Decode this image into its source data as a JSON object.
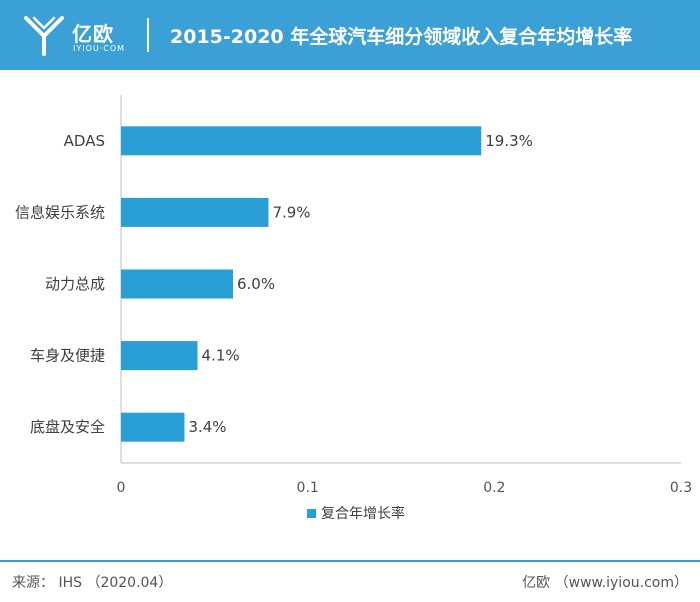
{
  "header": {
    "logo_text": "亿欧",
    "logo_sub": "IYIOU·COM",
    "title": "2015-2020 年全球汽车细分领域收入复合年均增长率"
  },
  "footer": {
    "source": "来源： IHS （2020.04）",
    "credit": "亿欧 （www.iyiou.com）"
  },
  "chart_data": {
    "type": "bar",
    "orientation": "horizontal",
    "categories": [
      "ADAS",
      "信息娱乐系统",
      "动力总成",
      "车身及便捷",
      "底盘及安全"
    ],
    "series": [
      {
        "name": "复合年增长率",
        "values": [
          0.193,
          0.079,
          0.06,
          0.041,
          0.034
        ],
        "labels": [
          "19.3%",
          "7.9%",
          "6.0%",
          "4.1%",
          "3.4%"
        ]
      }
    ],
    "xlim": [
      0,
      0.3
    ],
    "xticks": [
      0,
      0.1,
      0.2,
      0.3
    ],
    "xtick_labels": [
      "0",
      "0.1",
      "0.2",
      "0.3"
    ],
    "grid": false,
    "legend_position": "bottom",
    "bar_color": "#2a9fd6"
  }
}
